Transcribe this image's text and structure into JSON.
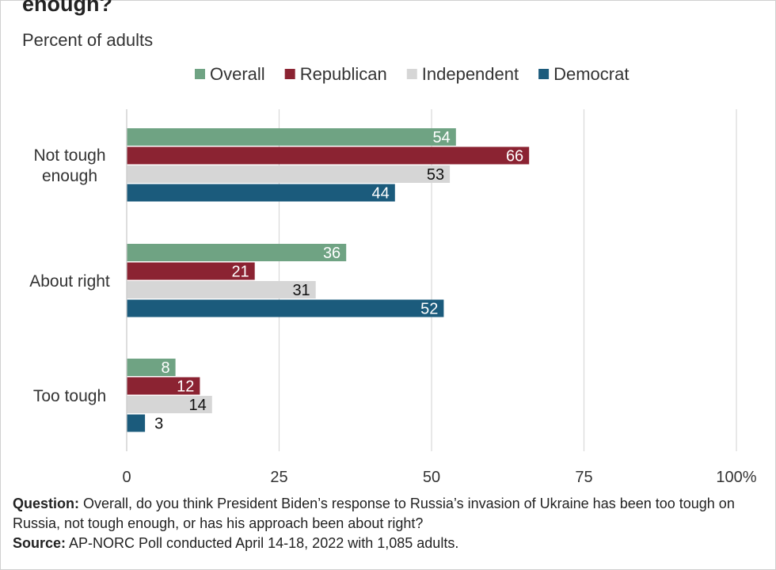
{
  "header": {
    "title": "enough?",
    "subtitle": "Percent of adults"
  },
  "chart_data": {
    "type": "bar",
    "orientation": "horizontal",
    "categories": [
      "Not tough enough",
      "About right",
      "Too tough"
    ],
    "category_lines": [
      [
        "Not tough",
        "enough"
      ],
      [
        "About right"
      ],
      [
        "Too tough"
      ]
    ],
    "series": [
      {
        "name": "Overall",
        "color": "#6fa383",
        "values": [
          54,
          36,
          8
        ]
      },
      {
        "name": "Republican",
        "color": "#8b2332",
        "values": [
          66,
          21,
          12
        ]
      },
      {
        "name": "Independent",
        "color": "#d6d6d6",
        "values": [
          53,
          31,
          14
        ]
      },
      {
        "name": "Democrat",
        "color": "#1b5b7c",
        "values": [
          44,
          52,
          3
        ]
      }
    ],
    "xlim": [
      0,
      100
    ],
    "x_ticks": [
      "0",
      "25",
      "50",
      "75",
      "100%"
    ],
    "x_tick_values": [
      0,
      25,
      50,
      75,
      100
    ],
    "grid": true,
    "legend": "top"
  },
  "footer": {
    "question_label": "Question:",
    "question_text": " Overall, do you think President Biden’s response to Russia’s invasion of Ukraine has been too tough on Russia, not tough enough, or has his approach been about right?",
    "source_label": "Source:",
    "source_text": " AP-NORC Poll conducted April 14-18, 2022 with 1,085 adults."
  }
}
